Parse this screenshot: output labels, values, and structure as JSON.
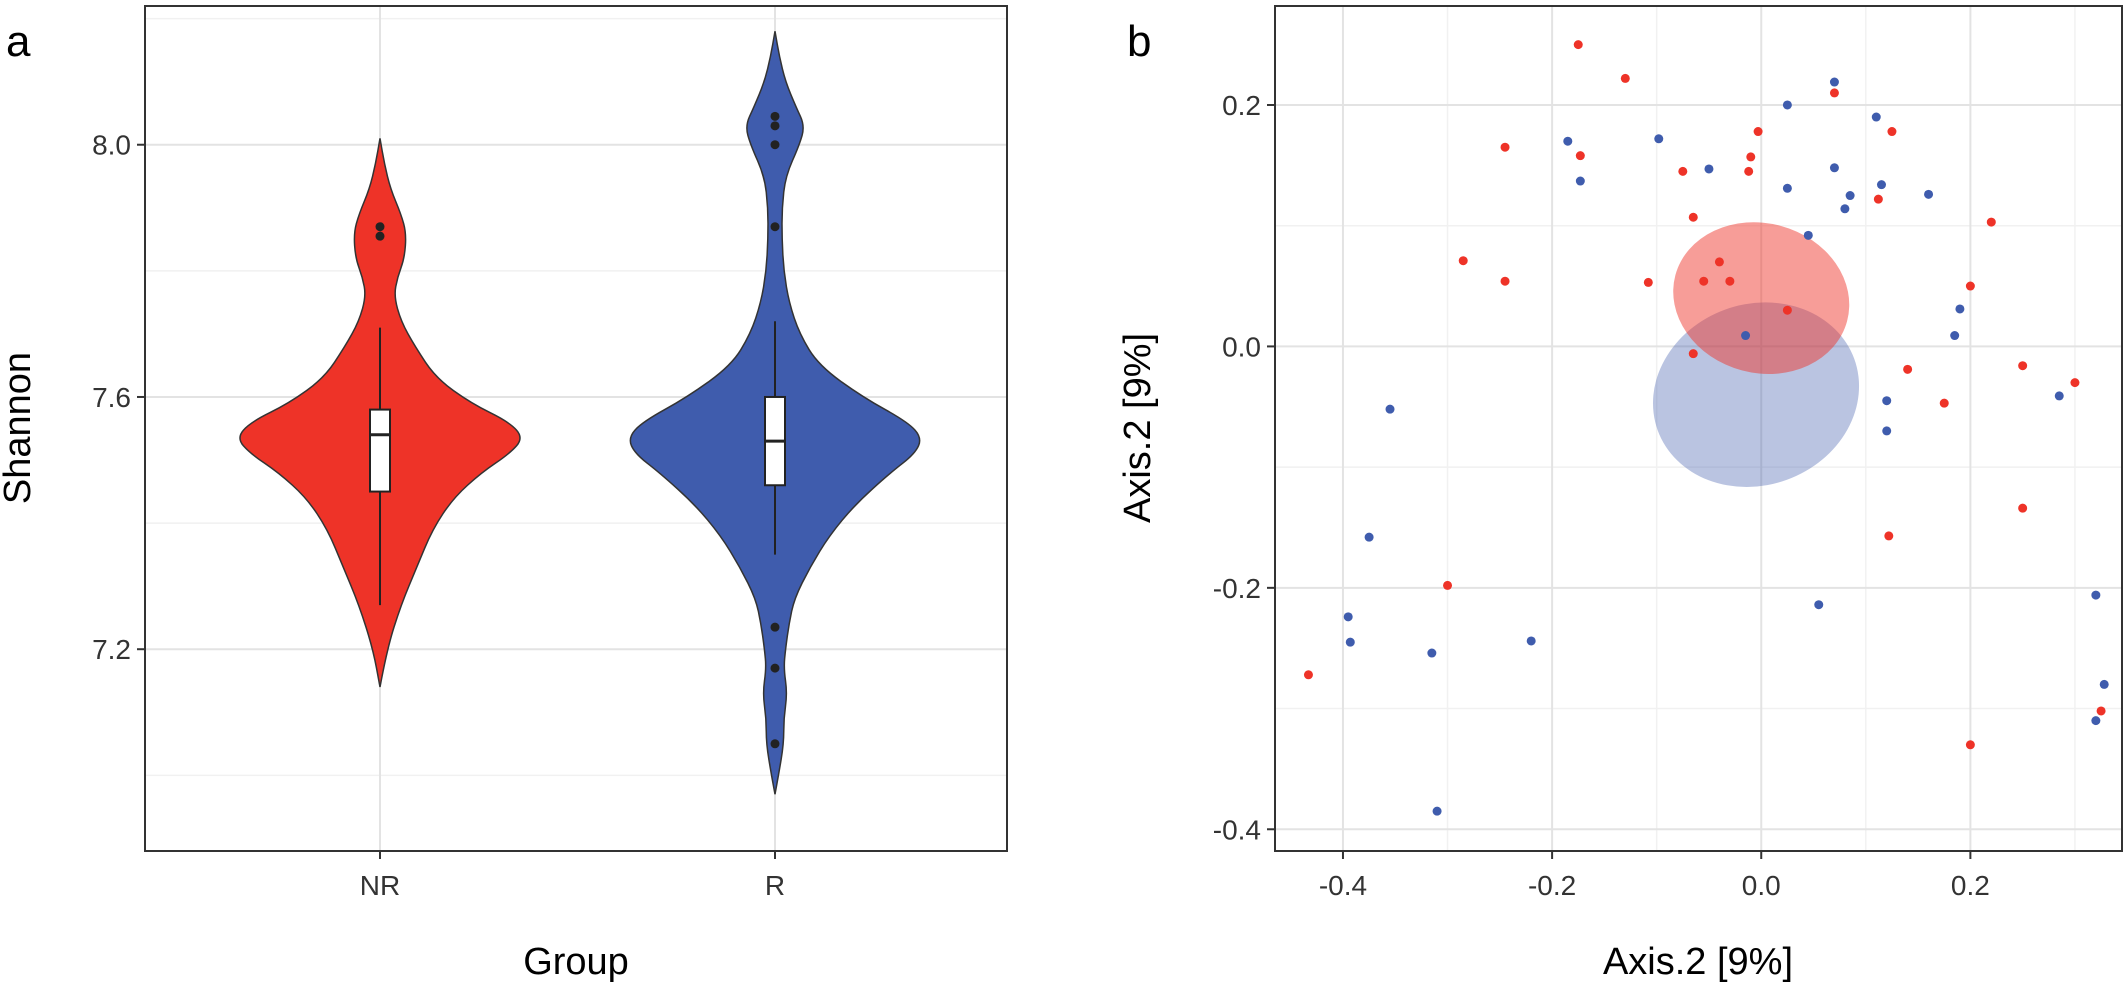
{
  "panel_labels": {
    "a": "a",
    "b": "b"
  },
  "chart_data": [
    {
      "type": "violin",
      "panel": "a",
      "xlabel": "Group",
      "ylabel": "Shannon",
      "ylim": [
        6.88,
        8.22
      ],
      "yticks": [
        "7.2",
        "7.6",
        "8.0"
      ],
      "grid": true,
      "categories": [
        "NR",
        "R"
      ],
      "colors": {
        "NR": "#ee3328",
        "R": "#3f5cad"
      },
      "series": [
        {
          "name": "NR",
          "min": 7.14,
          "max": 8.01,
          "density": [
            [
              7.14,
              0.0
            ],
            [
              7.2,
              0.04
            ],
            [
              7.27,
              0.12
            ],
            [
              7.33,
              0.21
            ],
            [
              7.39,
              0.3
            ],
            [
              7.44,
              0.42
            ],
            [
              7.48,
              0.58
            ],
            [
              7.51,
              0.74
            ],
            [
              7.535,
              0.82
            ],
            [
              7.56,
              0.74
            ],
            [
              7.59,
              0.52
            ],
            [
              7.63,
              0.32
            ],
            [
              7.68,
              0.2
            ],
            [
              7.72,
              0.12
            ],
            [
              7.76,
              0.08
            ],
            [
              7.79,
              0.1
            ],
            [
              7.82,
              0.14
            ],
            [
              7.86,
              0.15
            ],
            [
              7.89,
              0.12
            ],
            [
              7.93,
              0.06
            ],
            [
              7.97,
              0.025
            ],
            [
              8.01,
              0.0
            ]
          ],
          "box": {
            "lower_whisker": 7.27,
            "q1": 7.45,
            "median": 7.54,
            "q3": 7.58,
            "upper_whisker": 7.71
          },
          "outliers": [
            7.855,
            7.87
          ]
        },
        {
          "name": "R",
          "min": 6.97,
          "max": 8.18,
          "density": [
            [
              6.97,
              0.0
            ],
            [
              7.0,
              0.02
            ],
            [
              7.05,
              0.05
            ],
            [
              7.09,
              0.05
            ],
            [
              7.13,
              0.07
            ],
            [
              7.17,
              0.05
            ],
            [
              7.2,
              0.06
            ],
            [
              7.24,
              0.08
            ],
            [
              7.28,
              0.11
            ],
            [
              7.33,
              0.2
            ],
            [
              7.38,
              0.31
            ],
            [
              7.43,
              0.46
            ],
            [
              7.48,
              0.66
            ],
            [
              7.51,
              0.8
            ],
            [
              7.535,
              0.84
            ],
            [
              7.56,
              0.76
            ],
            [
              7.6,
              0.5
            ],
            [
              7.65,
              0.25
            ],
            [
              7.7,
              0.14
            ],
            [
              7.75,
              0.08
            ],
            [
              7.8,
              0.05
            ],
            [
              7.85,
              0.04
            ],
            [
              7.9,
              0.04
            ],
            [
              7.95,
              0.06
            ],
            [
              8.0,
              0.14
            ],
            [
              8.03,
              0.17
            ],
            [
              8.06,
              0.12
            ],
            [
              8.1,
              0.06
            ],
            [
              8.14,
              0.025
            ],
            [
              8.18,
              0.0
            ]
          ],
          "box": {
            "lower_whisker": 7.35,
            "q1": 7.46,
            "median": 7.53,
            "q3": 7.6,
            "upper_whisker": 7.72
          },
          "outliers": [
            7.05,
            7.17,
            7.235,
            7.87,
            8.0,
            8.03,
            8.045
          ]
        }
      ]
    },
    {
      "type": "scatter",
      "panel": "b",
      "xlabel": "Axis.2 [9%]",
      "ylabel": "Axis.2 [9%]",
      "xlim": [
        -0.465,
        0.345
      ],
      "ylim": [
        -0.418,
        0.282
      ],
      "xticks": [
        "-0.4",
        "-0.2",
        "0.0",
        "0.2"
      ],
      "yticks": [
        "-0.4",
        "-0.2",
        "0.0",
        "0.2"
      ],
      "grid": true,
      "colors": {
        "red": "#ee3328",
        "blue": "#3f5cad"
      },
      "ellipses": [
        {
          "group": "blue",
          "cx": -0.005,
          "cy": -0.04,
          "rx": 0.1,
          "ry": 0.075,
          "rotation_deg": -20,
          "fill_opacity": 0.36
        },
        {
          "group": "red",
          "cx": 0.0,
          "cy": 0.04,
          "rx": 0.085,
          "ry": 0.062,
          "rotation_deg": 15,
          "fill_opacity": 0.48
        }
      ],
      "series": [
        {
          "group": "red",
          "points": [
            [
              -0.175,
              0.25
            ],
            [
              -0.13,
              0.222
            ],
            [
              -0.245,
              0.165
            ],
            [
              -0.173,
              0.158
            ],
            [
              0.07,
              0.21
            ],
            [
              0.125,
              0.178
            ],
            [
              -0.003,
              0.178
            ],
            [
              -0.01,
              0.157
            ],
            [
              -0.012,
              0.145
            ],
            [
              -0.075,
              0.145
            ],
            [
              0.112,
              0.122
            ],
            [
              -0.065,
              0.107
            ],
            [
              0.22,
              0.103
            ],
            [
              -0.285,
              0.071
            ],
            [
              -0.04,
              0.07
            ],
            [
              -0.245,
              0.054
            ],
            [
              -0.108,
              0.053
            ],
            [
              -0.055,
              0.054
            ],
            [
              -0.03,
              0.054
            ],
            [
              0.2,
              0.05
            ],
            [
              0.025,
              0.03
            ],
            [
              -0.065,
              -0.006
            ],
            [
              0.14,
              -0.019
            ],
            [
              0.25,
              -0.016
            ],
            [
              0.3,
              -0.03
            ],
            [
              0.175,
              -0.047
            ],
            [
              0.25,
              -0.134
            ],
            [
              0.122,
              -0.157
            ],
            [
              -0.3,
              -0.198
            ],
            [
              -0.433,
              -0.272
            ],
            [
              0.2,
              -0.33
            ],
            [
              0.325,
              -0.302
            ]
          ]
        },
        {
          "group": "blue",
          "points": [
            [
              0.07,
              0.219
            ],
            [
              0.025,
              0.2
            ],
            [
              0.11,
              0.19
            ],
            [
              -0.185,
              0.17
            ],
            [
              -0.098,
              0.172
            ],
            [
              -0.173,
              0.137
            ],
            [
              -0.05,
              0.147
            ],
            [
              0.07,
              0.148
            ],
            [
              0.025,
              0.131
            ],
            [
              0.115,
              0.134
            ],
            [
              0.16,
              0.126
            ],
            [
              0.085,
              0.125
            ],
            [
              0.08,
              0.114
            ],
            [
              0.045,
              0.092
            ],
            [
              0.19,
              0.031
            ],
            [
              -0.015,
              0.009
            ],
            [
              0.185,
              0.009
            ],
            [
              0.12,
              -0.045
            ],
            [
              0.285,
              -0.041
            ],
            [
              -0.355,
              -0.052
            ],
            [
              0.12,
              -0.07
            ],
            [
              -0.375,
              -0.158
            ],
            [
              0.055,
              -0.214
            ],
            [
              0.32,
              -0.206
            ],
            [
              -0.395,
              -0.224
            ],
            [
              -0.22,
              -0.244
            ],
            [
              -0.393,
              -0.245
            ],
            [
              -0.315,
              -0.254
            ],
            [
              0.328,
              -0.28
            ],
            [
              0.32,
              -0.31
            ],
            [
              -0.31,
              -0.385
            ]
          ]
        }
      ]
    }
  ]
}
